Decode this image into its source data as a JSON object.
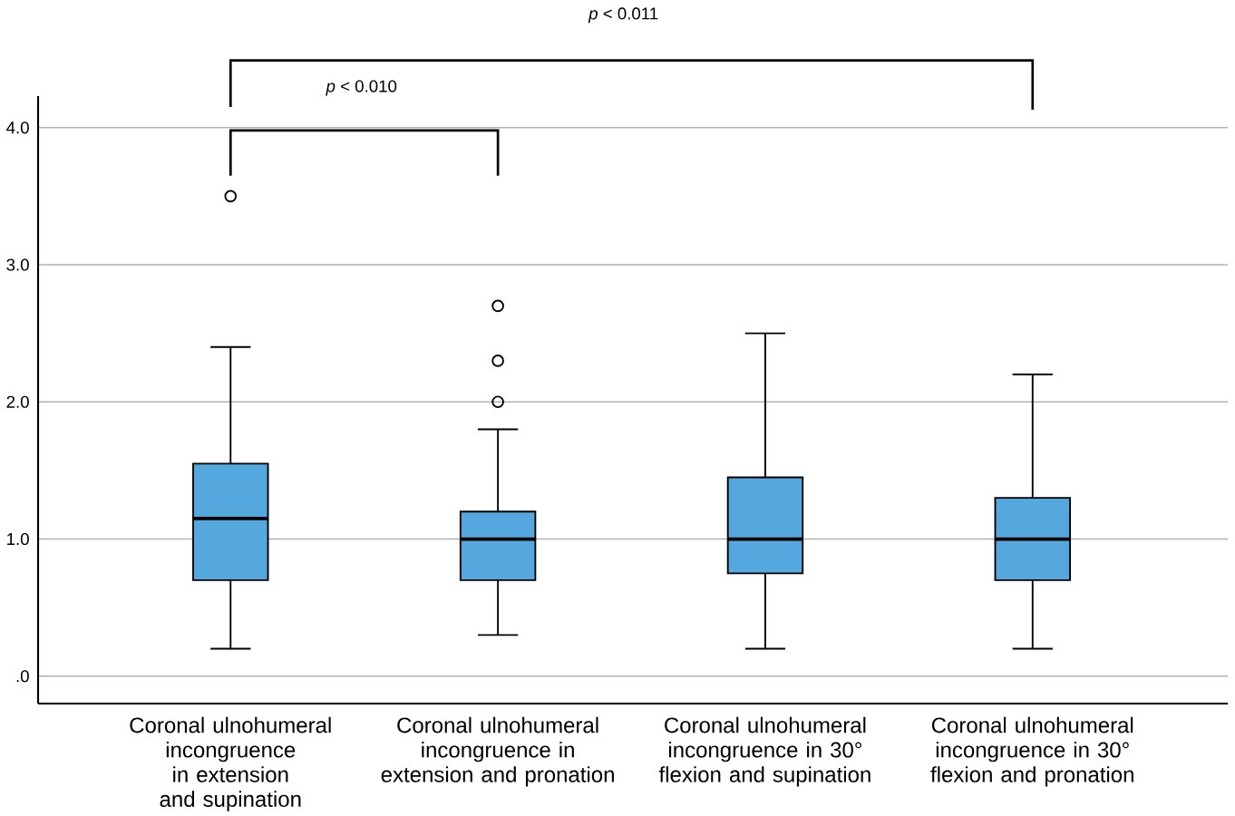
{
  "chart_data": {
    "type": "box",
    "categories": [
      "Coronal ulnohumeral incongruence in extension and supination",
      "Coronal ulnohumeral incongruence in extension and pronation",
      "Coronal ulnohumeral incongruence in 30° flexion and supination",
      "Coronal ulnohumeral incongruence in 30° flexion and pronation"
    ],
    "series": [
      {
        "color": "#55a8dd",
        "boxes": [
          {
            "low": 0.2,
            "q1": 0.7,
            "median": 1.15,
            "q3": 1.55,
            "high": 2.4,
            "outliers": [
              3.5
            ]
          },
          {
            "low": 0.3,
            "q1": 0.7,
            "median": 1.0,
            "q3": 1.2,
            "high": 1.8,
            "outliers": [
              2.0,
              2.3,
              2.7
            ]
          },
          {
            "low": 0.2,
            "q1": 0.75,
            "median": 1.0,
            "q3": 1.45,
            "high": 2.5
          },
          {
            "low": 0.2,
            "q1": 0.7,
            "median": 1.0,
            "q3": 1.3,
            "high": 2.2
          }
        ]
      }
    ],
    "ylim": [
      -0.2,
      4.23
    ],
    "yticks": [
      {
        "value": 0,
        "label": ".0"
      },
      {
        "value": 1,
        "label": "1.0"
      },
      {
        "value": 2,
        "label": "2.0"
      },
      {
        "value": 3,
        "label": "3.0"
      },
      {
        "value": 4,
        "label": "4.0"
      }
    ],
    "grid": "y",
    "marker": "circle",
    "annotations": [
      "*p* < 0.011",
      "*p* < 0.010"
    ]
  }
}
